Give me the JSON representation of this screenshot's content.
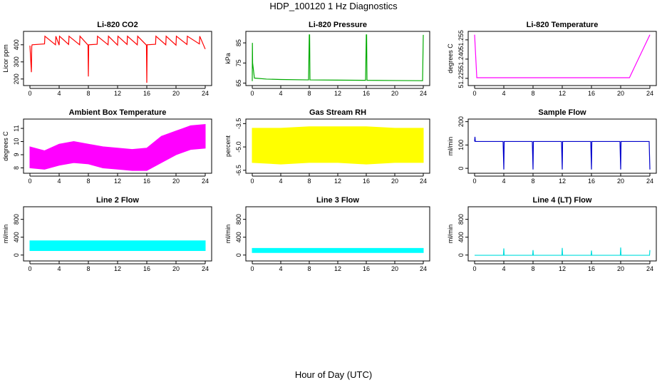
{
  "figure": {
    "title": "HDP_100120  1 Hz Diagnostics",
    "xlabel": "Hour of Day (UTC)"
  },
  "chart_data": [
    {
      "type": "line",
      "title": "Li-820 CO2",
      "ylabel": "Licor ppm",
      "color": "#ff0000",
      "xlim": [
        0,
        24
      ],
      "xticks": [
        0,
        4,
        8,
        12,
        16,
        20,
        24
      ],
      "ylim": [
        170,
        470
      ],
      "yticks": [
        200,
        300,
        400
      ],
      "series": [
        {
          "x": [
            0,
            0.2,
            0.25,
            0.3,
            2,
            2.05,
            3.5,
            3.55,
            4,
            4.05,
            5.3,
            5.35,
            6.8,
            6.85,
            7.95,
            8,
            8.05,
            9.2,
            9.25,
            10.7,
            10.75,
            12,
            12.05,
            13.3,
            13.35,
            14.7,
            14.75,
            15.95,
            16,
            16.05,
            17.2,
            17.25,
            18.6,
            18.65,
            20,
            20.05,
            21.5,
            21.55,
            23.2,
            23.25,
            24
          ],
          "y": [
            395,
            240,
            390,
            400,
            405,
            450,
            400,
            450,
            398,
            450,
            402,
            450,
            400,
            450,
            398,
            215,
            400,
            403,
            450,
            400,
            450,
            398,
            450,
            402,
            450,
            400,
            450,
            398,
            178,
            400,
            403,
            450,
            400,
            450,
            398,
            450,
            402,
            450,
            405,
            450,
            375
          ]
        }
      ]
    },
    {
      "type": "line",
      "title": "Li-820 Pressure",
      "ylabel": "kPa",
      "color": "#00aa00",
      "xlim": [
        0,
        24
      ],
      "xticks": [
        0,
        4,
        8,
        12,
        16,
        20,
        24
      ],
      "ylim": [
        64.5,
        90
      ],
      "yticks": [
        65,
        75,
        85
      ],
      "series": [
        {
          "x": [
            0,
            0.02,
            0.05,
            0.3,
            2,
            4,
            7.9,
            8,
            8.05,
            8.1,
            12,
            15.9,
            16,
            16.05,
            16.1,
            20,
            23.9,
            24
          ],
          "y": [
            66,
            85,
            75,
            67.5,
            67,
            66.8,
            66.6,
            89,
            89,
            66.6,
            66.5,
            66.4,
            89,
            89,
            66.4,
            66.3,
            66.2,
            89
          ]
        }
      ]
    },
    {
      "type": "line",
      "title": "Li-820 Temperature",
      "ylabel": "degrees C",
      "color": "#ff00ff",
      "xlim": [
        0,
        24
      ],
      "xticks": [
        0,
        4,
        8,
        12,
        16,
        20,
        24
      ],
      "ylim": [
        51.2205,
        51.2605
      ],
      "yticks": [
        51.225,
        51.24,
        51.255
      ],
      "series": [
        {
          "x": [
            0,
            0.3,
            0.6,
            0.8,
            1.1,
            1.3,
            1.6,
            1.9,
            2.1,
            2.4,
            4,
            4.2,
            4.4,
            4.8,
            5.1,
            5.4,
            5.7,
            6,
            6.5,
            7.2,
            7.7,
            8.2,
            8.6,
            9.1,
            11,
            12.8,
            16.4,
            16.6,
            16.9,
            19.5,
            20.3,
            21.2,
            24
          ],
          "y": [
            51.259,
            51.2255,
            51.2255,
            51.2255,
            51.2255,
            51.2255,
            51.2255,
            51.2255,
            51.2255,
            51.2255,
            51.2255,
            51.2255,
            51.2255,
            51.2255,
            51.2255,
            51.2255,
            51.2255,
            51.2255,
            51.2255,
            51.2255,
            51.2255,
            51.2255,
            51.2255,
            51.2255,
            51.2255,
            51.2255,
            51.2255,
            51.2255,
            51.2255,
            51.2255,
            51.2255,
            51.2255,
            51.259
          ]
        }
      ]
    },
    {
      "type": "area",
      "title": "Ambient Box Temperature",
      "ylabel": "degrees C",
      "color": "#ff00ff",
      "xlim": [
        0,
        24
      ],
      "xticks": [
        0,
        4,
        8,
        12,
        16,
        20,
        24
      ],
      "ylim": [
        7.7,
        11.6
      ],
      "yticks": [
        8,
        9,
        10,
        11
      ],
      "series": [
        {
          "name": "upper",
          "x": [
            0,
            2,
            4,
            6,
            8,
            10,
            12,
            14,
            16,
            18,
            20,
            22,
            24
          ],
          "y": [
            9.6,
            9.3,
            9.8,
            10.0,
            9.8,
            9.6,
            9.5,
            9.4,
            9.5,
            10.4,
            10.8,
            11.2,
            11.3
          ]
        },
        {
          "name": "lower",
          "x": [
            0,
            2,
            4,
            6,
            8,
            10,
            12,
            14,
            16,
            18,
            20,
            22,
            24
          ],
          "y": [
            8.0,
            7.9,
            8.2,
            8.4,
            8.3,
            8.0,
            7.9,
            7.8,
            7.8,
            8.4,
            9.0,
            9.4,
            9.5
          ]
        }
      ]
    },
    {
      "type": "area",
      "title": "Gas Stream RH",
      "ylabel": "percent",
      "color": "#ffff00",
      "xlim": [
        0,
        24
      ],
      "xticks": [
        0,
        4,
        8,
        12,
        16,
        20,
        24
      ],
      "ylim": [
        -6.6,
        -3.3
      ],
      "yticks": [
        -3.5,
        -5.0,
        -6.5
      ],
      "series": [
        {
          "name": "upper",
          "x": [
            0,
            4,
            8,
            12,
            16,
            20,
            24
          ],
          "y": [
            -3.8,
            -3.8,
            -3.7,
            -3.7,
            -3.7,
            -3.8,
            -3.8
          ]
        },
        {
          "name": "lower",
          "x": [
            0,
            4,
            8,
            12,
            16,
            20,
            24
          ],
          "y": [
            -6.0,
            -6.1,
            -6.0,
            -6.0,
            -6.1,
            -6.0,
            -6.0
          ]
        }
      ]
    },
    {
      "type": "line",
      "title": "Sample Flow",
      "ylabel": "ml/min",
      "color": "#0000cc",
      "xlim": [
        0,
        24
      ],
      "xticks": [
        0,
        4,
        8,
        12,
        16,
        20,
        24
      ],
      "ylim": [
        -15,
        205
      ],
      "yticks": [
        0,
        100,
        200
      ],
      "series": [
        {
          "x": [
            0,
            0.05,
            0.1,
            3.9,
            4,
            4.05,
            7.9,
            8,
            8.05,
            11.9,
            12,
            12.05,
            15.9,
            16,
            16.05,
            19.9,
            20,
            20.05,
            23.9,
            24
          ],
          "y": [
            115,
            135,
            115,
            115,
            -5,
            115,
            115,
            -5,
            115,
            115,
            -5,
            115,
            115,
            -5,
            115,
            115,
            -5,
            115,
            115,
            -5
          ]
        }
      ]
    },
    {
      "type": "area",
      "title": "Line 2 Flow",
      "ylabel": "ml/min",
      "color": "#00ffff",
      "xlim": [
        0,
        24
      ],
      "xticks": [
        0,
        4,
        8,
        12,
        16,
        20,
        24
      ],
      "ylim": [
        -100,
        1050
      ],
      "yticks": [
        0,
        400,
        800
      ],
      "series": [
        {
          "name": "upper",
          "x": [
            0,
            4,
            8,
            12,
            16,
            20,
            24
          ],
          "y": [
            320,
            320,
            320,
            320,
            320,
            320,
            320
          ]
        },
        {
          "name": "lower",
          "x": [
            0,
            4,
            8,
            12,
            16,
            20,
            24
          ],
          "y": [
            100,
            100,
            100,
            100,
            100,
            100,
            100
          ]
        }
      ]
    },
    {
      "type": "area",
      "title": "Line 3 Flow",
      "ylabel": "ml/min",
      "color": "#00ffff",
      "xlim": [
        0,
        24
      ],
      "xticks": [
        0,
        4,
        8,
        12,
        16,
        20,
        24
      ],
      "ylim": [
        -100,
        1050
      ],
      "yticks": [
        0,
        400,
        800
      ],
      "series": [
        {
          "name": "upper",
          "x": [
            0,
            4,
            8,
            12,
            16,
            20,
            24
          ],
          "y": [
            150,
            150,
            150,
            150,
            150,
            150,
            150
          ]
        },
        {
          "name": "lower",
          "x": [
            0,
            4,
            8,
            12,
            16,
            20,
            24
          ],
          "y": [
            55,
            55,
            55,
            55,
            55,
            55,
            55
          ]
        }
      ]
    },
    {
      "type": "line",
      "title": "Line 4 (LT) Flow",
      "ylabel": "ml/min",
      "color": "#00dddd",
      "xlim": [
        0,
        24
      ],
      "xticks": [
        0,
        4,
        8,
        12,
        16,
        20,
        24
      ],
      "ylim": [
        -100,
        1050
      ],
      "yticks": [
        0,
        400,
        800
      ],
      "series": [
        {
          "x": [
            0,
            3.95,
            4,
            4.05,
            7.95,
            8,
            8.05,
            11.95,
            12,
            12.05,
            15.95,
            16,
            16.05,
            19.95,
            20,
            20.05,
            23.95,
            24
          ],
          "y": [
            -5,
            -5,
            150,
            -5,
            -5,
            110,
            -5,
            -5,
            160,
            -5,
            -5,
            100,
            -5,
            -5,
            170,
            -5,
            -5,
            110
          ]
        }
      ]
    }
  ]
}
